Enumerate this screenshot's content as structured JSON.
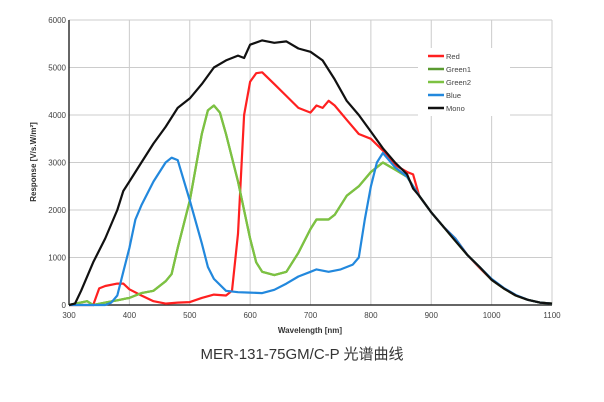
{
  "chart_data": {
    "type": "line",
    "title": "",
    "caption": "MER-131-75GM/C-P 光谱曲线",
    "xlabel": "Wavelength [nm]",
    "ylabel": "Response [V/s.W/m²]",
    "xlim": [
      300,
      1100
    ],
    "ylim": [
      0,
      6000
    ],
    "xticks": [
      300,
      400,
      500,
      600,
      700,
      800,
      900,
      1000,
      1100
    ],
    "yticks": [
      0,
      1000,
      2000,
      3000,
      4000,
      5000,
      6000
    ],
    "grid": true,
    "legend_position": "top-right",
    "series": [
      {
        "name": "Red",
        "color": "#ff2020",
        "points": [
          [
            300,
            0
          ],
          [
            340,
            0
          ],
          [
            350,
            350
          ],
          [
            360,
            400
          ],
          [
            380,
            450
          ],
          [
            390,
            450
          ],
          [
            400,
            330
          ],
          [
            420,
            200
          ],
          [
            440,
            80
          ],
          [
            460,
            30
          ],
          [
            480,
            50
          ],
          [
            500,
            60
          ],
          [
            520,
            150
          ],
          [
            540,
            220
          ],
          [
            560,
            200
          ],
          [
            570,
            300
          ],
          [
            580,
            1500
          ],
          [
            590,
            4000
          ],
          [
            600,
            4700
          ],
          [
            610,
            4880
          ],
          [
            620,
            4900
          ],
          [
            640,
            4650
          ],
          [
            660,
            4400
          ],
          [
            680,
            4150
          ],
          [
            700,
            4050
          ],
          [
            710,
            4200
          ],
          [
            720,
            4150
          ],
          [
            730,
            4300
          ],
          [
            740,
            4200
          ],
          [
            760,
            3900
          ],
          [
            780,
            3600
          ],
          [
            800,
            3500
          ],
          [
            820,
            3250
          ],
          [
            840,
            2950
          ],
          [
            860,
            2800
          ],
          [
            870,
            2750
          ],
          [
            880,
            2300
          ],
          [
            900,
            1950
          ],
          [
            920,
            1650
          ],
          [
            940,
            1400
          ],
          [
            960,
            1050
          ],
          [
            980,
            780
          ],
          [
            1000,
            530
          ],
          [
            1020,
            350
          ],
          [
            1040,
            200
          ],
          [
            1060,
            110
          ],
          [
            1080,
            50
          ],
          [
            1100,
            30
          ]
        ]
      },
      {
        "name": "Green1",
        "color": "#5a9a30",
        "points": [
          [
            300,
            0
          ],
          [
            330,
            80
          ],
          [
            340,
            0
          ],
          [
            360,
            50
          ],
          [
            380,
            100
          ],
          [
            400,
            150
          ],
          [
            420,
            250
          ],
          [
            440,
            300
          ],
          [
            460,
            500
          ],
          [
            470,
            650
          ],
          [
            480,
            1200
          ],
          [
            500,
            2200
          ],
          [
            520,
            3600
          ],
          [
            530,
            4100
          ],
          [
            540,
            4200
          ],
          [
            550,
            4050
          ],
          [
            560,
            3600
          ],
          [
            580,
            2600
          ],
          [
            600,
            1400
          ],
          [
            610,
            900
          ],
          [
            620,
            700
          ],
          [
            640,
            630
          ],
          [
            660,
            700
          ],
          [
            680,
            1100
          ],
          [
            700,
            1600
          ],
          [
            710,
            1800
          ],
          [
            730,
            1800
          ],
          [
            740,
            1900
          ],
          [
            760,
            2300
          ],
          [
            780,
            2500
          ],
          [
            800,
            2800
          ],
          [
            820,
            3000
          ],
          [
            840,
            2850
          ],
          [
            860,
            2700
          ],
          [
            880,
            2300
          ],
          [
            900,
            1950
          ],
          [
            920,
            1650
          ],
          [
            940,
            1350
          ],
          [
            960,
            1050
          ],
          [
            980,
            800
          ],
          [
            1000,
            530
          ],
          [
            1020,
            350
          ],
          [
            1040,
            200
          ],
          [
            1060,
            110
          ],
          [
            1080,
            50
          ],
          [
            1100,
            30
          ]
        ]
      },
      {
        "name": "Green2",
        "color": "#7dc242",
        "points": [
          [
            300,
            0
          ],
          [
            330,
            80
          ],
          [
            340,
            0
          ],
          [
            360,
            50
          ],
          [
            380,
            100
          ],
          [
            400,
            150
          ],
          [
            420,
            250
          ],
          [
            440,
            300
          ],
          [
            460,
            500
          ],
          [
            470,
            650
          ],
          [
            480,
            1200
          ],
          [
            500,
            2200
          ],
          [
            520,
            3600
          ],
          [
            530,
            4100
          ],
          [
            540,
            4200
          ],
          [
            550,
            4050
          ],
          [
            560,
            3600
          ],
          [
            580,
            2600
          ],
          [
            600,
            1400
          ],
          [
            610,
            900
          ],
          [
            620,
            700
          ],
          [
            640,
            630
          ],
          [
            660,
            700
          ],
          [
            680,
            1100
          ],
          [
            700,
            1600
          ],
          [
            710,
            1800
          ],
          [
            730,
            1800
          ],
          [
            740,
            1900
          ],
          [
            760,
            2300
          ],
          [
            780,
            2500
          ],
          [
            800,
            2800
          ],
          [
            820,
            3000
          ],
          [
            840,
            2850
          ],
          [
            860,
            2700
          ],
          [
            880,
            2300
          ],
          [
            900,
            1950
          ],
          [
            920,
            1650
          ],
          [
            940,
            1350
          ],
          [
            960,
            1050
          ],
          [
            980,
            800
          ],
          [
            1000,
            530
          ],
          [
            1020,
            350
          ],
          [
            1040,
            200
          ],
          [
            1060,
            110
          ],
          [
            1080,
            50
          ],
          [
            1100,
            30
          ]
        ]
      },
      {
        "name": "Blue",
        "color": "#2288dd",
        "points": [
          [
            300,
            0
          ],
          [
            360,
            0
          ],
          [
            370,
            50
          ],
          [
            380,
            200
          ],
          [
            390,
            700
          ],
          [
            400,
            1200
          ],
          [
            410,
            1800
          ],
          [
            420,
            2100
          ],
          [
            440,
            2600
          ],
          [
            460,
            3000
          ],
          [
            470,
            3100
          ],
          [
            480,
            3050
          ],
          [
            500,
            2200
          ],
          [
            520,
            1300
          ],
          [
            530,
            800
          ],
          [
            540,
            550
          ],
          [
            560,
            300
          ],
          [
            580,
            270
          ],
          [
            600,
            260
          ],
          [
            620,
            250
          ],
          [
            640,
            320
          ],
          [
            660,
            450
          ],
          [
            680,
            600
          ],
          [
            700,
            700
          ],
          [
            710,
            750
          ],
          [
            730,
            700
          ],
          [
            750,
            750
          ],
          [
            770,
            850
          ],
          [
            780,
            1000
          ],
          [
            790,
            1800
          ],
          [
            800,
            2500
          ],
          [
            810,
            3000
          ],
          [
            820,
            3200
          ],
          [
            840,
            2900
          ],
          [
            860,
            2700
          ],
          [
            880,
            2300
          ],
          [
            900,
            1950
          ],
          [
            920,
            1650
          ],
          [
            940,
            1400
          ],
          [
            960,
            1050
          ],
          [
            980,
            800
          ],
          [
            1000,
            550
          ],
          [
            1020,
            360
          ],
          [
            1040,
            210
          ],
          [
            1060,
            110
          ],
          [
            1080,
            50
          ],
          [
            1100,
            30
          ]
        ]
      },
      {
        "name": "Mono",
        "color": "#111111",
        "points": [
          [
            300,
            0
          ],
          [
            310,
            30
          ],
          [
            320,
            300
          ],
          [
            340,
            900
          ],
          [
            360,
            1400
          ],
          [
            380,
            2000
          ],
          [
            390,
            2400
          ],
          [
            400,
            2600
          ],
          [
            420,
            3000
          ],
          [
            440,
            3400
          ],
          [
            460,
            3750
          ],
          [
            480,
            4150
          ],
          [
            500,
            4350
          ],
          [
            520,
            4650
          ],
          [
            540,
            5000
          ],
          [
            560,
            5150
          ],
          [
            580,
            5250
          ],
          [
            590,
            5200
          ],
          [
            600,
            5480
          ],
          [
            620,
            5570
          ],
          [
            640,
            5520
          ],
          [
            660,
            5550
          ],
          [
            680,
            5400
          ],
          [
            700,
            5330
          ],
          [
            720,
            5150
          ],
          [
            740,
            4750
          ],
          [
            760,
            4300
          ],
          [
            780,
            4000
          ],
          [
            800,
            3650
          ],
          [
            820,
            3300
          ],
          [
            840,
            3000
          ],
          [
            860,
            2750
          ],
          [
            870,
            2450
          ],
          [
            880,
            2300
          ],
          [
            900,
            1950
          ],
          [
            920,
            1650
          ],
          [
            940,
            1350
          ],
          [
            960,
            1050
          ],
          [
            980,
            800
          ],
          [
            1000,
            530
          ],
          [
            1020,
            350
          ],
          [
            1040,
            200
          ],
          [
            1060,
            110
          ],
          [
            1080,
            50
          ],
          [
            1100,
            30
          ]
        ]
      }
    ]
  }
}
